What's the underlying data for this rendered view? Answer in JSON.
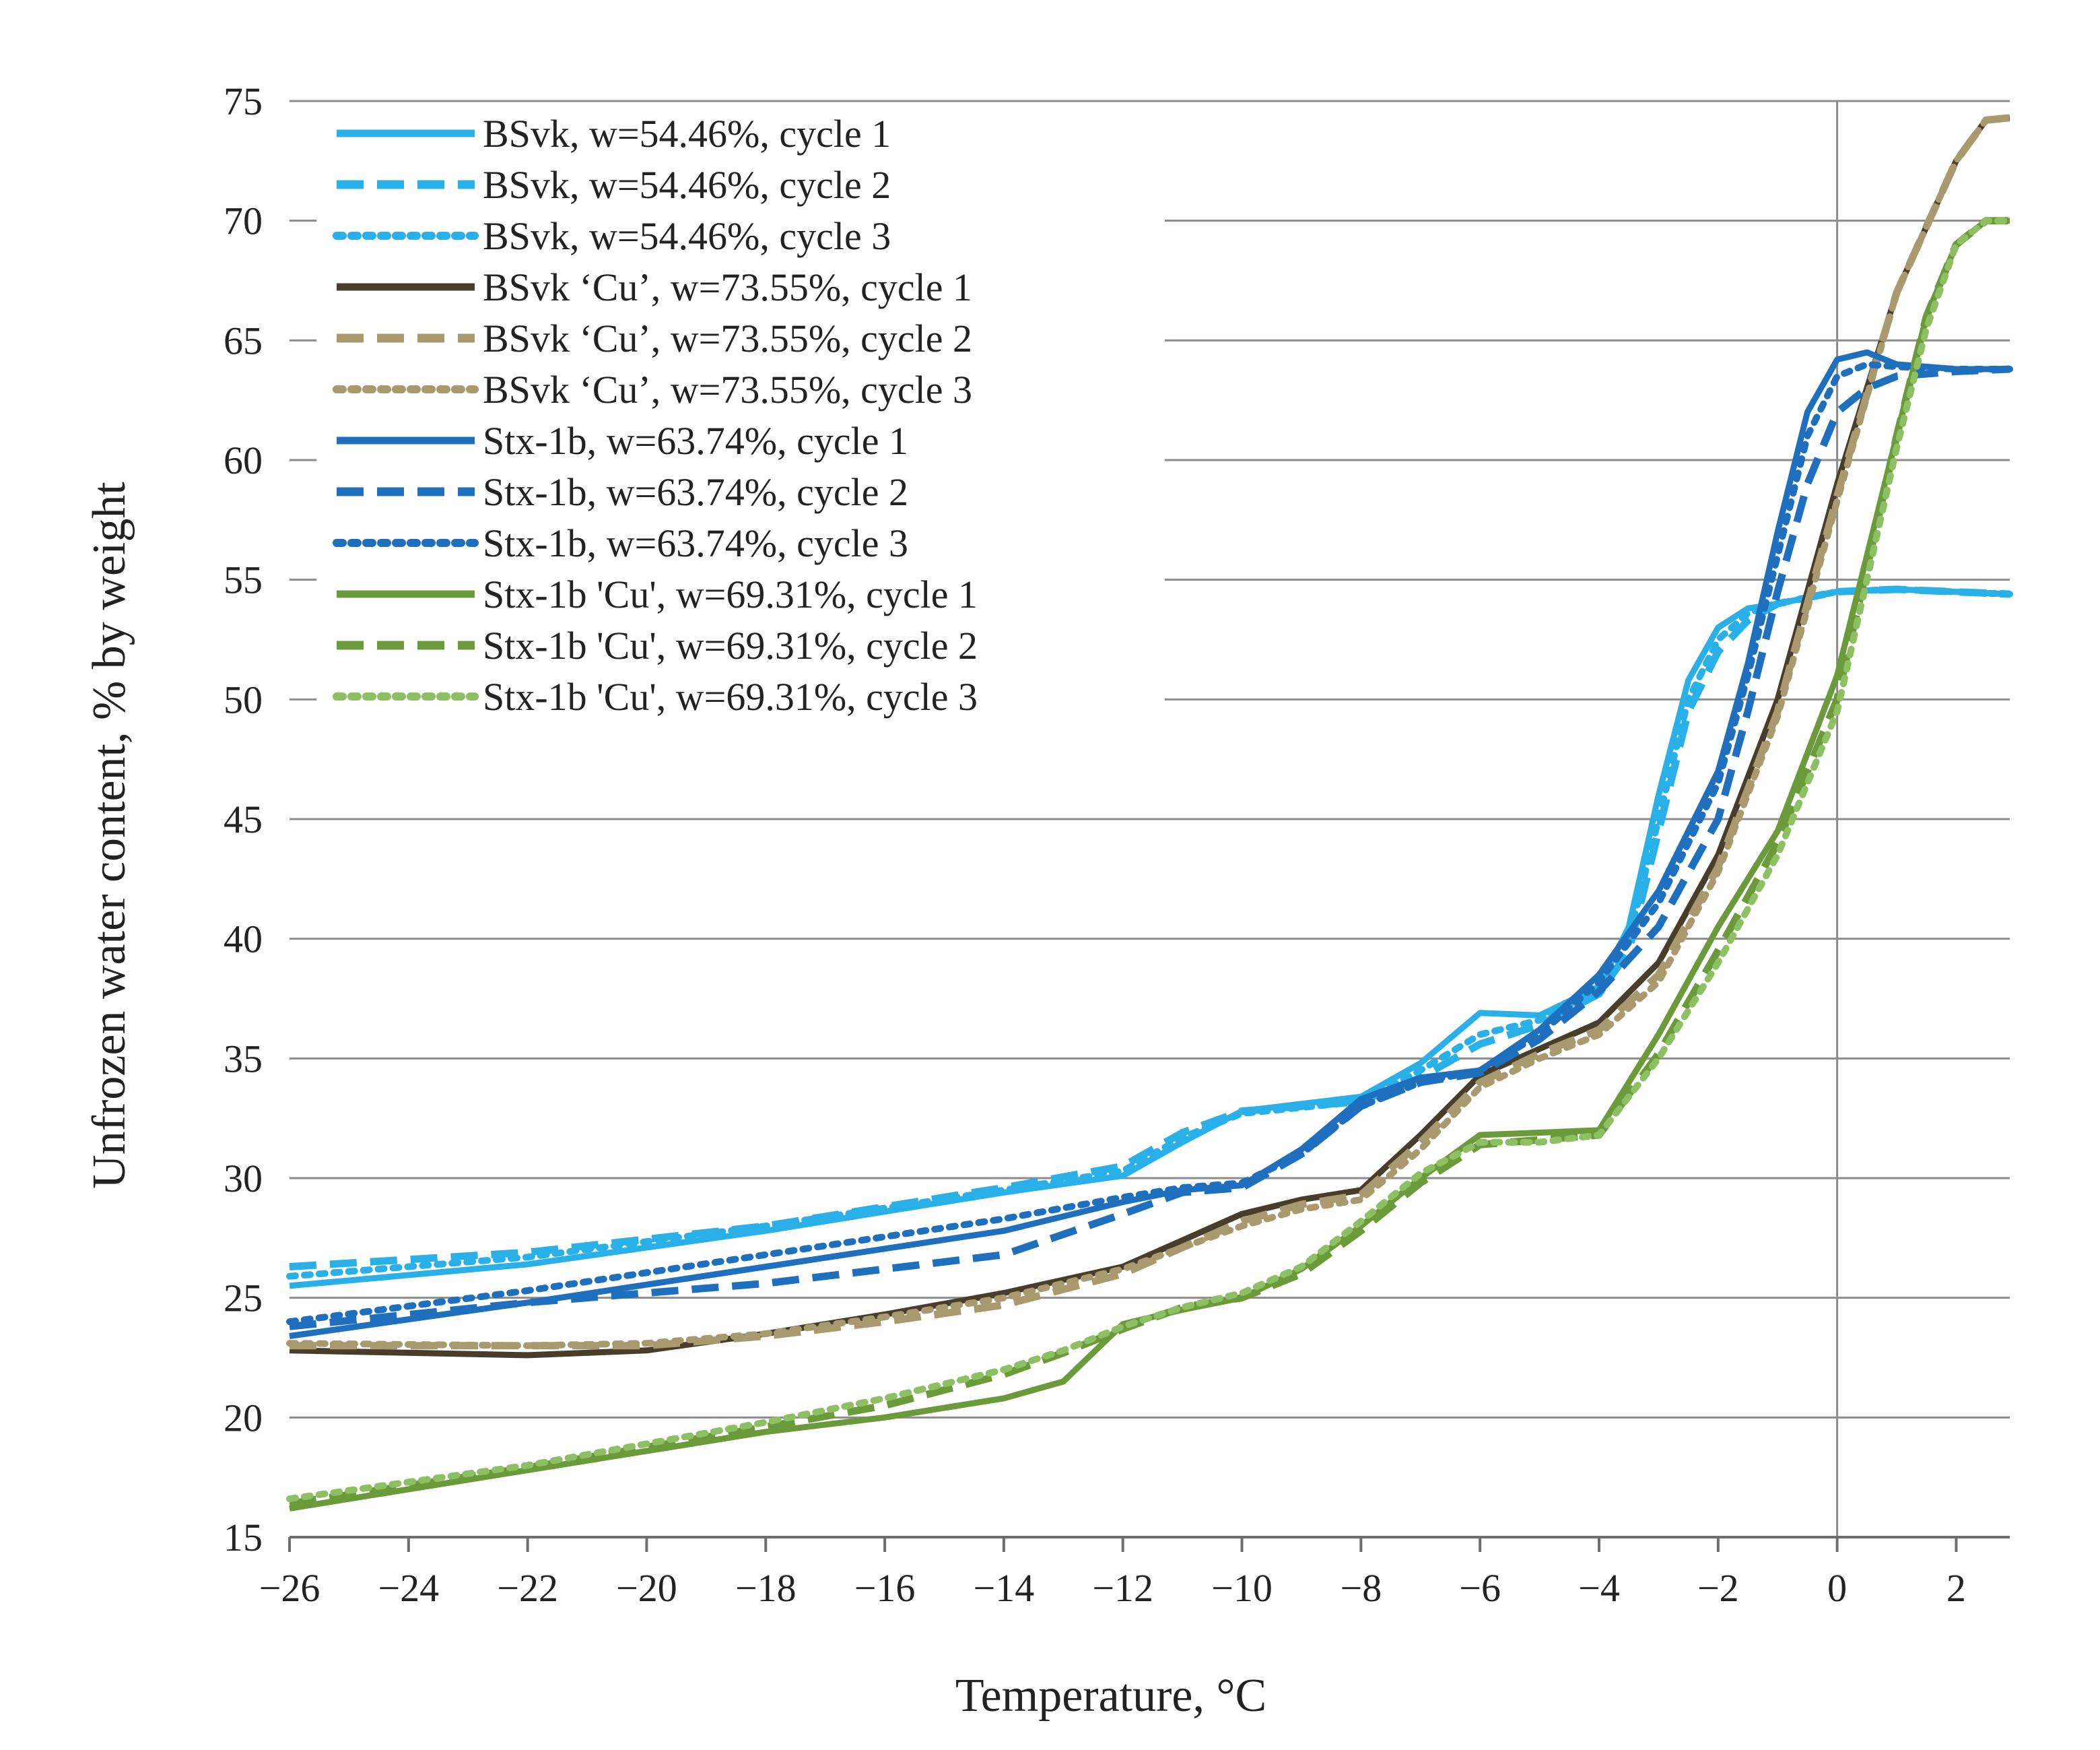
{
  "chart_data": {
    "type": "line",
    "title": "",
    "xlabel": "Temperature,  °C",
    "ylabel": "Unfrozen water content, % by weight",
    "xlim": [
      -26,
      2.9
    ],
    "ylim": [
      15,
      75
    ],
    "x_ticks": [
      -26,
      -24,
      -22,
      -20,
      -18,
      -16,
      -14,
      -12,
      -10,
      -8,
      -6,
      -4,
      -2,
      0,
      2
    ],
    "x_tick_labels": [
      "−26",
      "−24",
      "−22",
      "−20",
      "−18",
      "−16",
      "−14",
      "−12",
      "−10",
      "−8",
      "−6",
      "−4",
      "−2",
      "0",
      "2"
    ],
    "y_ticks": [
      15,
      20,
      25,
      30,
      35,
      40,
      45,
      50,
      55,
      60,
      65,
      70,
      75
    ],
    "y_tick_labels": [
      "15",
      "20",
      "25",
      "30",
      "35",
      "40",
      "45",
      "50",
      "55",
      "60",
      "65",
      "70",
      "75"
    ],
    "grid": "horizontal",
    "legend_position": "top-left",
    "series": [
      {
        "name": "BSvk, w=54.46%, cycle 1",
        "color": "#29b0e8",
        "dash": "solid",
        "x": [
          -26,
          -22,
          -18,
          -14,
          -12,
          -11,
          -10,
          -8,
          -7,
          -6,
          -5,
          -4,
          -3.5,
          -3,
          -2.5,
          -2,
          -1.5,
          -1,
          0,
          1,
          2.9
        ],
        "y": [
          25.5,
          26.4,
          27.8,
          29.4,
          30.1,
          31.5,
          32.8,
          33.4,
          34.8,
          36.9,
          36.8,
          38.0,
          40.5,
          46.0,
          50.8,
          53.0,
          53.8,
          54.0,
          54.5,
          54.6,
          54.4
        ]
      },
      {
        "name": "BSvk, w=54.46%, cycle 2",
        "color": "#29b0e8",
        "dash": "dashed",
        "x": [
          -26,
          -22,
          -18,
          -14,
          -12,
          -11,
          -10,
          -8,
          -7,
          -6,
          -5,
          -4,
          -3.5,
          -3,
          -2.5,
          -2,
          -1.5,
          -1,
          0,
          1,
          2.9
        ],
        "y": [
          26.3,
          26.9,
          28.0,
          29.6,
          30.5,
          31.9,
          32.8,
          33.2,
          34.2,
          35.6,
          36.4,
          37.7,
          39.5,
          44.5,
          49.5,
          52.0,
          53.3,
          54.0,
          54.5,
          54.6,
          54.4
        ]
      },
      {
        "name": "BSvk, w=54.46%, cycle 3",
        "color": "#29b0e8",
        "dash": "dotted",
        "x": [
          -26,
          -22,
          -18,
          -14,
          -12,
          -11,
          -10,
          -8,
          -7,
          -6,
          -5,
          -4,
          -3.5,
          -3,
          -2.5,
          -2,
          -1.5,
          -1,
          0,
          1,
          2.9
        ],
        "y": [
          25.9,
          26.7,
          28.0,
          29.5,
          30.3,
          31.7,
          32.7,
          33.2,
          34.5,
          36.0,
          36.6,
          37.8,
          40.0,
          45.0,
          50.0,
          52.5,
          53.6,
          54.0,
          54.5,
          54.6,
          54.4
        ]
      },
      {
        "name": "BSvk ‘Cu’, w=73.55%, cycle 1",
        "color": "#473d2a",
        "dash": "solid",
        "x": [
          -26,
          -22,
          -20,
          -18,
          -16,
          -14,
          -12,
          -10,
          -9,
          -8,
          -7,
          -6,
          -5,
          -4,
          -3,
          -2,
          -1,
          0,
          1,
          2,
          2.5,
          2.9
        ],
        "y": [
          22.8,
          22.6,
          22.8,
          23.5,
          24.3,
          25.2,
          26.3,
          28.5,
          29.1,
          29.5,
          31.8,
          34.3,
          35.4,
          36.5,
          39.0,
          43.5,
          50.0,
          59.0,
          67.0,
          72.5,
          74.2,
          74.3
        ]
      },
      {
        "name": "BSvk ‘Cu’, w=73.55%, cycle 2",
        "color": "#a89a6e",
        "dash": "dashed",
        "x": [
          -26,
          -22,
          -20,
          -18,
          -16,
          -14,
          -12,
          -10,
          -9,
          -8,
          -7,
          -6,
          -5,
          -4,
          -3,
          -2,
          -1,
          0,
          1,
          2,
          2.5,
          2.9
        ],
        "y": [
          23.0,
          23.0,
          23.0,
          23.4,
          24.0,
          24.7,
          26.0,
          28.2,
          28.9,
          29.3,
          31.5,
          34.0,
          35.2,
          36.2,
          38.5,
          43.0,
          49.5,
          58.5,
          67.0,
          72.5,
          74.2,
          74.3
        ]
      },
      {
        "name": "BSvk ‘Cu’, w=73.55%, cycle 3",
        "color": "#a89a6e",
        "dash": "dotted",
        "x": [
          -26,
          -22,
          -20,
          -18,
          -16,
          -14,
          -12,
          -10,
          -9,
          -8,
          -7,
          -6,
          -5,
          -4,
          -3,
          -2,
          -1,
          0,
          1,
          2,
          2.5,
          2.9
        ],
        "y": [
          23.1,
          23.0,
          23.1,
          23.5,
          24.2,
          25.0,
          26.2,
          28.0,
          28.7,
          29.1,
          31.2,
          33.8,
          35.0,
          36.0,
          38.2,
          42.8,
          49.3,
          58.3,
          67.0,
          72.5,
          74.2,
          74.3
        ]
      },
      {
        "name": "Stx-1b, w=63.74%, cycle 1",
        "color": "#1f6fbf",
        "dash": "solid",
        "x": [
          -26,
          -22,
          -18,
          -14,
          -12,
          -11,
          -10,
          -9,
          -8,
          -7,
          -6,
          -5,
          -4,
          -3,
          -2,
          -1.5,
          -1,
          -0.5,
          0,
          0.5,
          1,
          2,
          2.9
        ],
        "y": [
          23.4,
          24.8,
          26.3,
          27.8,
          29.0,
          29.5,
          29.7,
          31.2,
          33.3,
          34.2,
          34.5,
          36.2,
          38.5,
          42.0,
          47.0,
          51.5,
          57.0,
          62.0,
          64.2,
          64.5,
          64.0,
          63.8,
          63.8
        ]
      },
      {
        "name": "Stx-1b, w=63.74%, cycle 2",
        "color": "#1f6fbf",
        "dash": "dashed",
        "x": [
          -26,
          -22,
          -18,
          -14,
          -12,
          -11,
          -10,
          -9,
          -8,
          -7,
          -6,
          -5,
          -4,
          -3,
          -2,
          -1.5,
          -1,
          -0.5,
          0,
          0.5,
          1,
          2,
          2.9
        ],
        "y": [
          23.8,
          24.8,
          25.6,
          26.8,
          28.5,
          29.4,
          29.6,
          31.0,
          33.0,
          34.0,
          34.4,
          35.8,
          37.8,
          40.5,
          45.0,
          49.5,
          54.5,
          59.0,
          62.0,
          63.0,
          63.5,
          63.7,
          63.8
        ]
      },
      {
        "name": "Stx-1b, w=63.74%, cycle 3",
        "color": "#1f6fbf",
        "dash": "dotted",
        "x": [
          -26,
          -22,
          -18,
          -14,
          -12,
          -11,
          -10,
          -9,
          -8,
          -7,
          -6,
          -5,
          -4,
          -3,
          -2,
          -1.5,
          -1,
          -0.5,
          0,
          0.5,
          1,
          2,
          2.9
        ],
        "y": [
          24.0,
          25.3,
          26.8,
          28.3,
          29.2,
          29.6,
          29.8,
          31.0,
          33.0,
          34.0,
          34.5,
          36.0,
          38.2,
          41.5,
          46.5,
          51.0,
          56.0,
          61.0,
          63.5,
          64.0,
          63.9,
          63.8,
          63.8
        ]
      },
      {
        "name": "Stx-1b 'Cu', w=69.31%, cycle 1",
        "color": "#6b9a3a",
        "dash": "solid",
        "x": [
          -26,
          -22,
          -18,
          -16,
          -14,
          -13,
          -12,
          -11,
          -10,
          -9,
          -8,
          -7,
          -6,
          -5,
          -4,
          -3,
          -2,
          -1,
          0,
          0.5,
          1,
          1.5,
          2,
          2.5,
          2.9
        ],
        "y": [
          16.2,
          17.8,
          19.4,
          20.0,
          20.8,
          21.5,
          23.9,
          24.5,
          25.0,
          26.2,
          28.0,
          30.0,
          31.8,
          31.9,
          32.0,
          36.0,
          40.5,
          44.5,
          51.0,
          56.0,
          61.0,
          66.0,
          69.0,
          70.0,
          70.0
        ]
      },
      {
        "name": "Stx-1b 'Cu', w=69.31%, cycle 2",
        "color": "#6b9a3a",
        "dash": "dashed",
        "x": [
          -26,
          -22,
          -18,
          -16,
          -14,
          -13,
          -12,
          -11,
          -10,
          -9,
          -8,
          -7,
          -6,
          -5,
          -4,
          -3,
          -2,
          -1,
          0,
          0.5,
          1,
          1.5,
          2,
          2.5,
          2.9
        ],
        "y": [
          16.4,
          17.9,
          19.6,
          20.5,
          21.8,
          22.7,
          23.7,
          24.6,
          25.0,
          26.0,
          27.8,
          29.8,
          31.4,
          31.6,
          31.8,
          35.2,
          39.5,
          44.0,
          50.0,
          55.5,
          61.0,
          66.0,
          69.0,
          70.0,
          70.0
        ]
      },
      {
        "name": "Stx-1b 'Cu', w=69.31%, cycle 3",
        "color": "#8dc063",
        "dash": "dotted",
        "x": [
          -26,
          -22,
          -18,
          -16,
          -14,
          -13,
          -12,
          -11,
          -10,
          -9,
          -8,
          -7,
          -6,
          -5,
          -4,
          -3,
          -2,
          -1,
          0,
          0.5,
          1,
          1.5,
          2,
          2.5,
          2.9
        ],
        "y": [
          16.6,
          18.0,
          19.8,
          20.8,
          22.0,
          22.8,
          23.8,
          24.6,
          25.2,
          26.3,
          28.2,
          30.2,
          31.5,
          31.5,
          31.8,
          35.0,
          39.0,
          43.5,
          49.5,
          55.0,
          60.5,
          65.5,
          69.0,
          70.0,
          70.0
        ]
      }
    ]
  }
}
